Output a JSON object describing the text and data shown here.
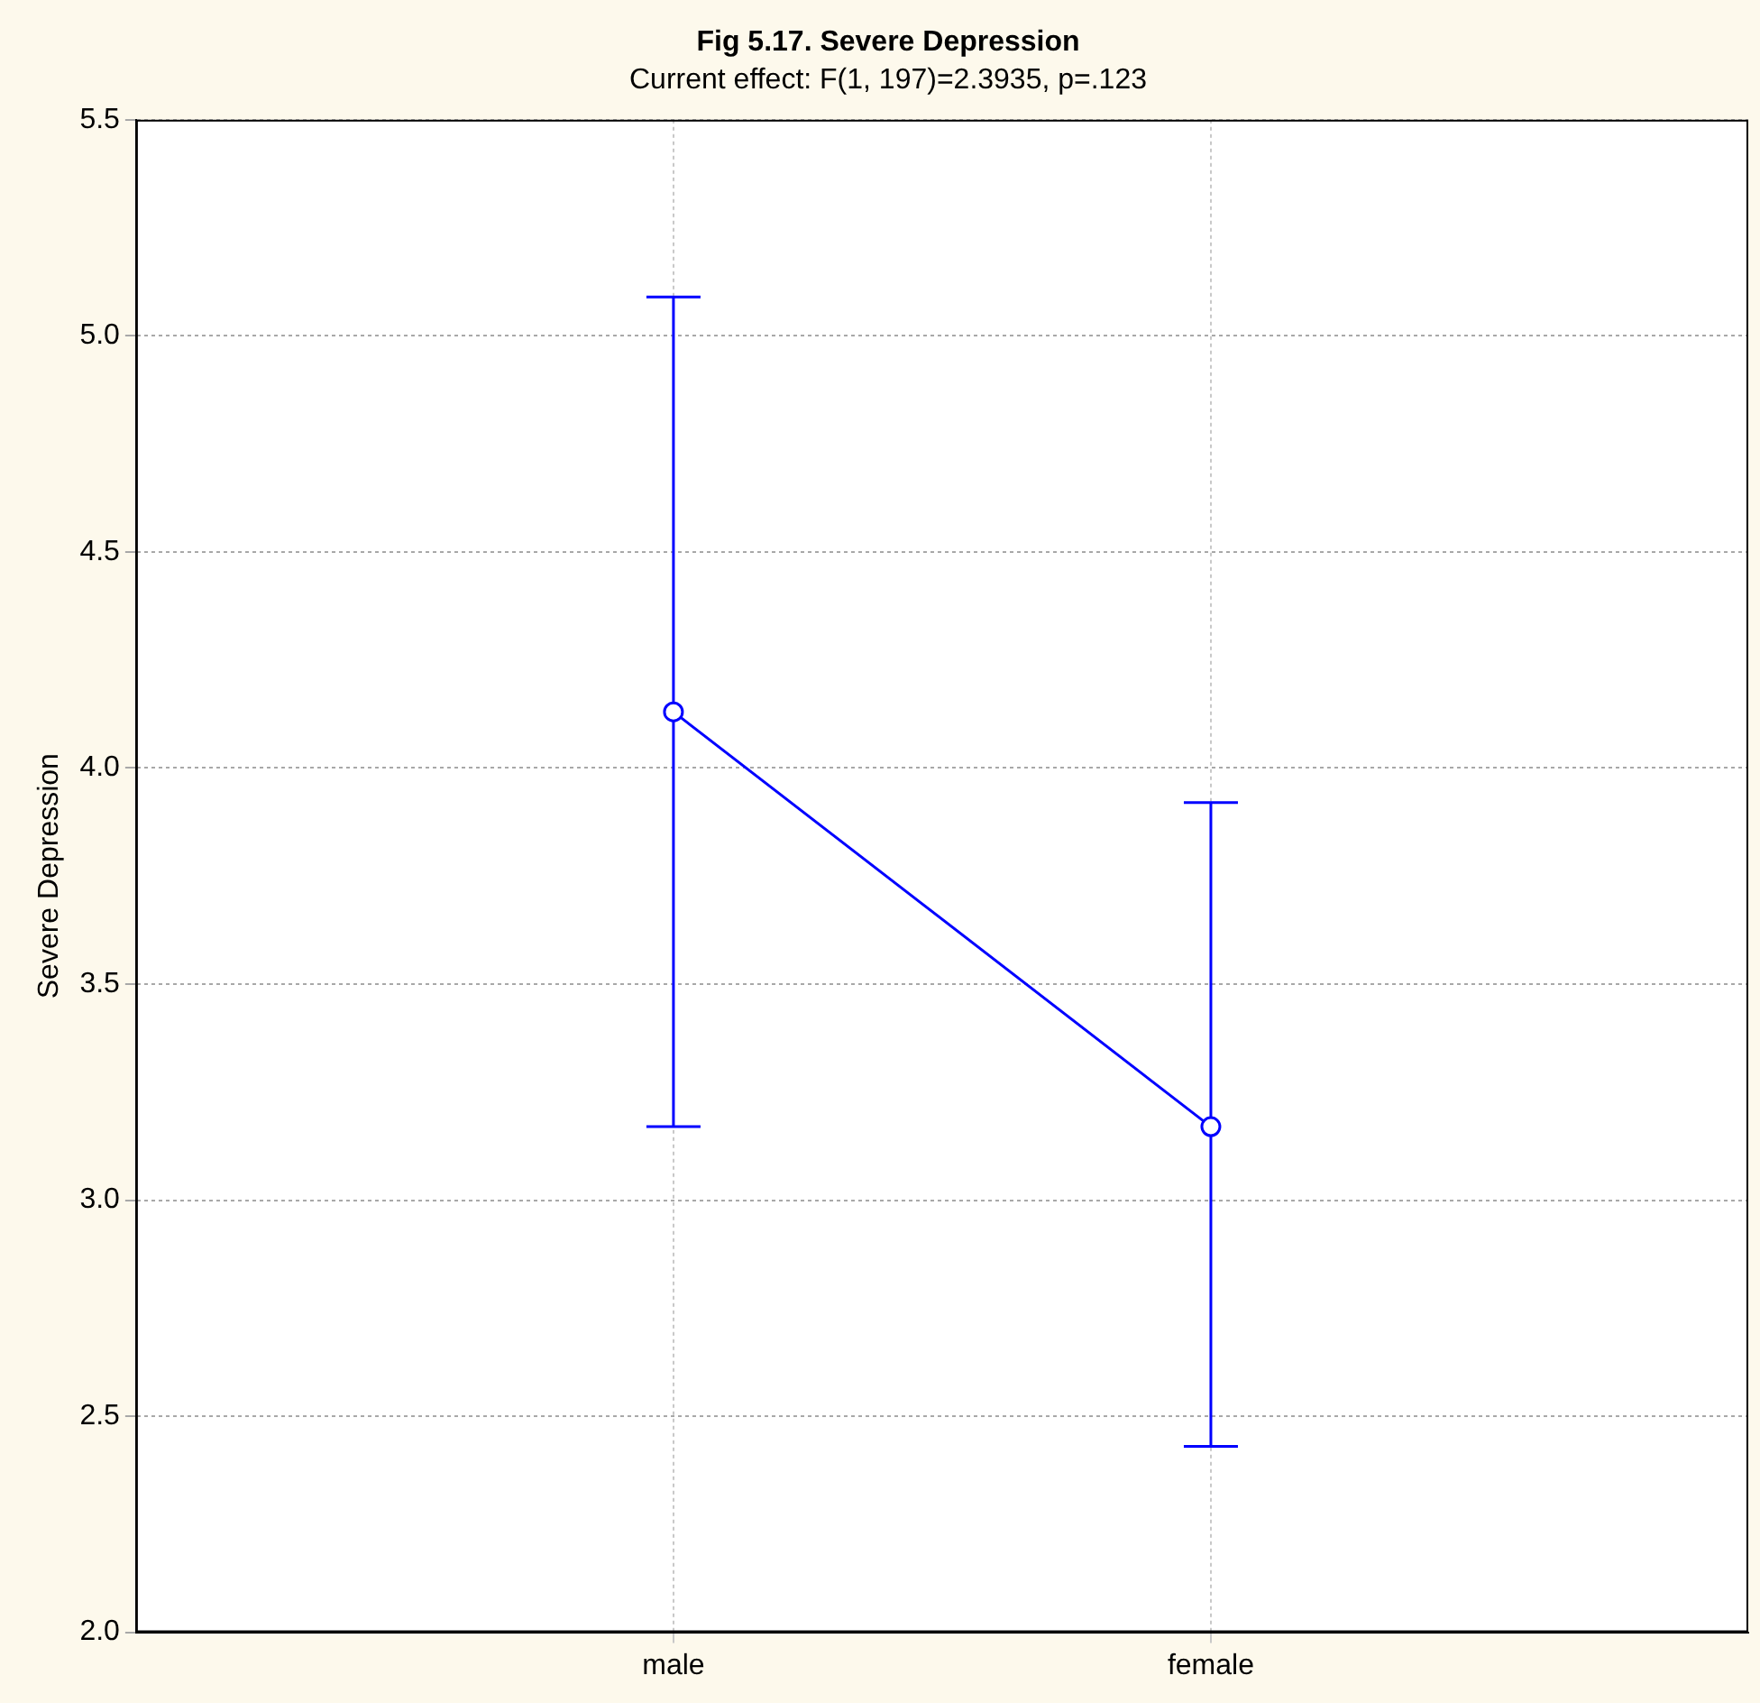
{
  "chart_data": {
    "type": "line",
    "title": "Fig 5.17. Severe Depression",
    "subtitle": "Current effect: F(1, 197)=2.3935, p=.123",
    "ylabel": "Severe Depression",
    "categories": [
      "male",
      "female"
    ],
    "series": [
      {
        "color": "#0000ff",
        "values": [
          4.13,
          3.17
        ],
        "errors": [
          [
            3.17,
            5.09
          ],
          [
            2.43,
            3.92
          ]
        ]
      }
    ],
    "ylim": [
      2.0,
      5.5
    ],
    "yticks": [
      {
        "value": 2.0,
        "label": "2.0"
      },
      {
        "value": 2.5,
        "label": "2.5"
      },
      {
        "value": 3.0,
        "label": "3.0"
      },
      {
        "value": 3.5,
        "label": "3.5"
      },
      {
        "value": 4.0,
        "label": "4.0"
      },
      {
        "value": 4.5,
        "label": "4.5"
      },
      {
        "value": 5.0,
        "label": "5.0"
      },
      {
        "value": 5.5,
        "label": "5.5"
      }
    ],
    "grid": true,
    "legend": false,
    "marker": "circle",
    "line_style": "solid"
  }
}
